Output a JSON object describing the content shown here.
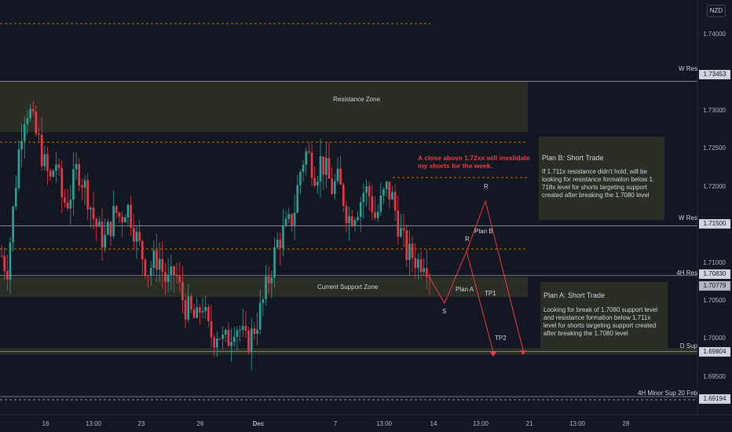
{
  "currency": "NZD",
  "colors": {
    "up": "#26a69a",
    "down": "#f23645",
    "zone": "#2a2e25",
    "background": "#131722"
  },
  "chart_data": {
    "type": "candlestick",
    "x_ticks": [
      "16",
      "13:00",
      "23",
      "26",
      "Dec",
      "7",
      "13:00",
      "14",
      "13:00",
      "21",
      "13:00",
      "28"
    ],
    "y_ticks": [
      "1.74000",
      "1.73000",
      "1.72500",
      "1.72000",
      "1.71000",
      "1.70500",
      "1.70000",
      "1.69500"
    ],
    "ylim": [
      1.6895,
      1.7455
    ],
    "levels": [
      {
        "name": "W Res",
        "price": "1.73453",
        "value": 1.73453
      },
      {
        "name": "W Res",
        "price": "1.71500",
        "value": 1.715
      },
      {
        "name": "4H Res",
        "price": "1.70830",
        "value": 1.7083
      },
      {
        "name": "",
        "price": "1.70779",
        "value": 1.70779
      },
      {
        "name": "D Sup",
        "price": "1.69804",
        "value": 1.69804
      },
      {
        "name": "4H Minor Sup 20 Feb",
        "price": "1.69194",
        "value": 1.69194
      }
    ],
    "zones": [
      {
        "label": "Resistance Zone",
        "top": 1.7345,
        "bottom": 1.7277
      },
      {
        "label": "Current Support Zone",
        "top": 1.7081,
        "bottom": 1.7054
      }
    ],
    "close_path": [
      1.711,
      1.709,
      1.716,
      1.724,
      1.73,
      1.731,
      1.728,
      1.726,
      1.723,
      1.721,
      1.724,
      1.719,
      1.718,
      1.72,
      1.723,
      1.721,
      1.719,
      1.716,
      1.714,
      1.713,
      1.715,
      1.717,
      1.716,
      1.718,
      1.716,
      1.713,
      1.711,
      1.709,
      1.71,
      1.711,
      1.708,
      1.707,
      1.709,
      1.706,
      1.704,
      1.703,
      1.702,
      1.705,
      1.701,
      1.7,
      1.701,
      1.699,
      1.7,
      1.702,
      1.701,
      1.699,
      1.7,
      1.702,
      1.704,
      1.707,
      1.71,
      1.713,
      1.714,
      1.715,
      1.717,
      1.722,
      1.725,
      1.724,
      1.722,
      1.724,
      1.722,
      1.72,
      1.721,
      1.719,
      1.716,
      1.717,
      1.718,
      1.72,
      1.719,
      1.716,
      1.718,
      1.72,
      1.719,
      1.716,
      1.713,
      1.711,
      1.711,
      1.71,
      1.711,
      1.709
    ]
  },
  "annotations": {
    "resistance_zone": "Resistance Zone",
    "support_zone": "Current Support Zone",
    "warning_line1": "A close above 1.72xx will invalidate",
    "warning_line2": "my shorts for the week.",
    "plan_b_title": "Plan B: Short Trade",
    "plan_b_lines": [
      "If 1.711x resistance didn't hold, will be",
      "looking for resistance formation below 1.",
      "718x level for shorts targeting support",
      "created after breaking the 1.7080 level"
    ],
    "plan_a_title": "Plan A: Short Trade",
    "plan_a_lines": [
      "Looking for break of 1.7080 support level",
      "and resistance formation below 1.711x",
      "level for shorts targeting support created",
      "after breaking the 1.7080 level"
    ],
    "path_labels": {
      "s": "S",
      "r1": "R",
      "r2": "R",
      "plan_a": "Plan A",
      "plan_b": "Plan B",
      "tp1": "TP1",
      "tp2": "TP2"
    }
  }
}
